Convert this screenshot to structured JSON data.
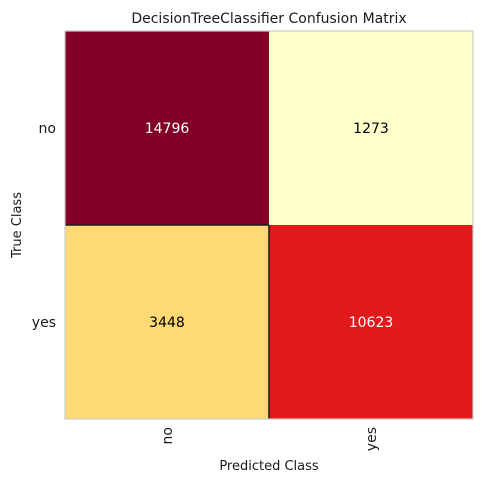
{
  "chart_data": {
    "type": "heatmap",
    "title": "DecisionTreeClassifier Confusion Matrix",
    "xlabel": "Predicted Class",
    "ylabel": "True Class",
    "x_categories": [
      "no",
      "yes"
    ],
    "y_categories": [
      "no",
      "yes"
    ],
    "cells": [
      {
        "row": 0,
        "col": 0,
        "value": "14796",
        "fill": "#800026",
        "text_color": "#ffffff"
      },
      {
        "row": 0,
        "col": 1,
        "value": "1273",
        "fill": "#ffffcc",
        "text_color": "#000000"
      },
      {
        "row": 1,
        "col": 0,
        "value": "3448",
        "fill": "#fed976",
        "text_color": "#000000"
      },
      {
        "row": 1,
        "col": 1,
        "value": "10623",
        "fill": "#e31a1c",
        "text_color": "#ffffff"
      }
    ],
    "grid": false,
    "colormap": "YlOrRd"
  }
}
